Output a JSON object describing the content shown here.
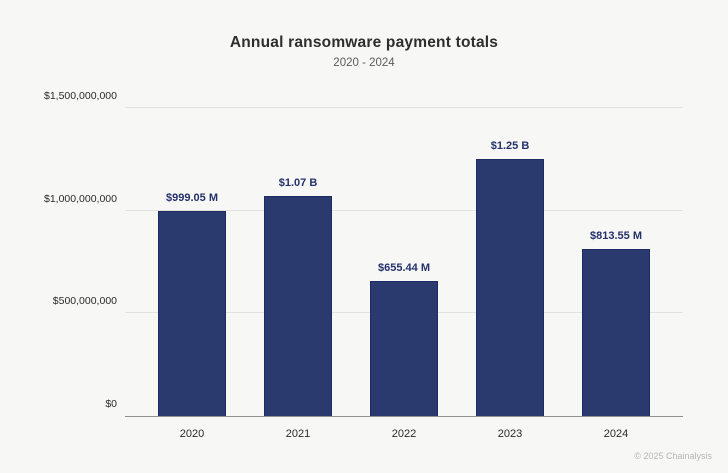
{
  "header": {
    "title": "Annual ransomware payment totals",
    "subtitle": "2020 - 2024"
  },
  "footer": {
    "copyright": "© 2025 Chainalysis"
  },
  "colors": {
    "background": "#f7f7f5",
    "bar_fill": "#2b3a6e",
    "bar_border": "#1d2a66",
    "value_label": "#24316b",
    "gridline": "#e2e2e0",
    "axis_line": "#8f8f8f",
    "title_text": "#2e2e2e",
    "axis_text": "#2b2b2b"
  },
  "chart_data": {
    "type": "bar",
    "title": "Annual ransomware payment totals",
    "subtitle": "2020 - 2024",
    "categories": [
      "2020",
      "2021",
      "2022",
      "2023",
      "2024"
    ],
    "values": [
      999050000,
      1070000000,
      655440000,
      1250000000,
      813550000
    ],
    "value_labels": [
      "$999.05 M",
      "$1.07 B",
      "$655.44 M",
      "$1.25 B",
      "$813.55 M"
    ],
    "xlabel": "",
    "ylabel": "",
    "ylim": [
      0,
      1500000000
    ],
    "yticks": [
      {
        "value": 0,
        "label": "$0"
      },
      {
        "value": 500000000,
        "label": "$500,000,000"
      },
      {
        "value": 1000000000,
        "label": "$1,000,000,000"
      },
      {
        "value": 1500000000,
        "label": "$1,500,000,000"
      }
    ],
    "grid": true,
    "legend": false
  }
}
